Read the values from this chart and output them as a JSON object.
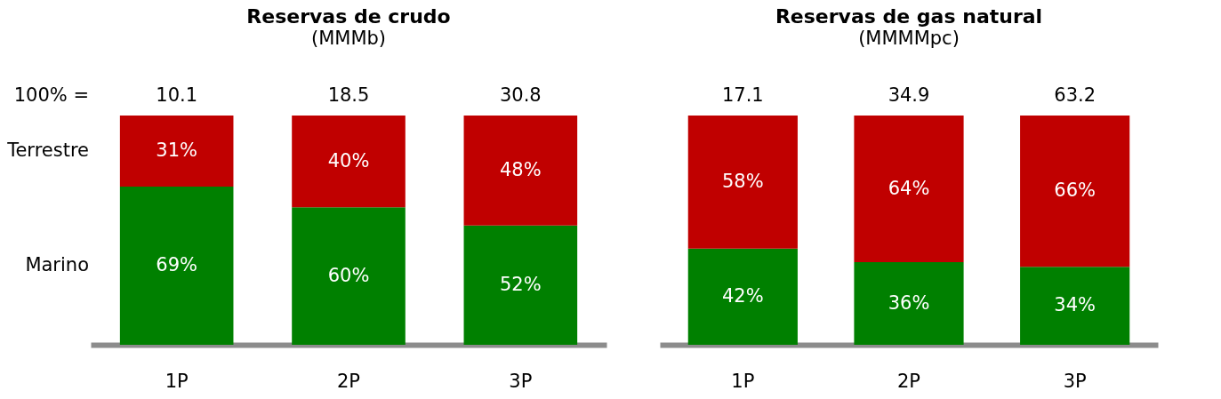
{
  "chart_data": [
    {
      "type": "bar",
      "stacked": true,
      "title": "Reservas de crudo",
      "subtitle": "(MMMb)",
      "categories": [
        "1P",
        "2P",
        "3P"
      ],
      "ylim": [
        0,
        100
      ],
      "tick_labels": "x",
      "annotations": [
        "100% =",
        {
          "text": "10.1",
          "x": "1P",
          "y": 100
        },
        {
          "text": "18.5",
          "x": "2P",
          "y": 100
        },
        {
          "text": "30.8",
          "x": "3P",
          "y": 100
        }
      ],
      "series": [
        {
          "name": "Marino",
          "color": "#008000",
          "values": [
            69,
            60,
            52
          ],
          "value_labels": [
            "69%",
            "60%",
            "52%"
          ]
        },
        {
          "name": "Terrestre",
          "color": "#c00000",
          "values": [
            31,
            40,
            48
          ],
          "value_labels": [
            "31%",
            "40%",
            "48%"
          ]
        }
      ]
    },
    {
      "type": "bar",
      "stacked": true,
      "title": "Reservas de gas natural",
      "subtitle": "(MMMMpc)",
      "categories": [
        "1P",
        "2P",
        "3P"
      ],
      "ylim": [
        0,
        100
      ],
      "tick_labels": "x",
      "annotations": [
        {
          "text": "17.1",
          "x": "1P",
          "y": 100
        },
        {
          "text": "34.9",
          "x": "2P",
          "y": 100
        },
        {
          "text": "63.2",
          "x": "3P",
          "y": 100
        }
      ],
      "series": [
        {
          "color": "#008000",
          "values": [
            42,
            36,
            34
          ],
          "value_labels": [
            "42%",
            "36%",
            "34%"
          ]
        },
        {
          "color": "#c00000",
          "values": [
            58,
            64,
            66
          ],
          "value_labels": [
            "58%",
            "64%",
            "66%"
          ]
        }
      ]
    }
  ]
}
